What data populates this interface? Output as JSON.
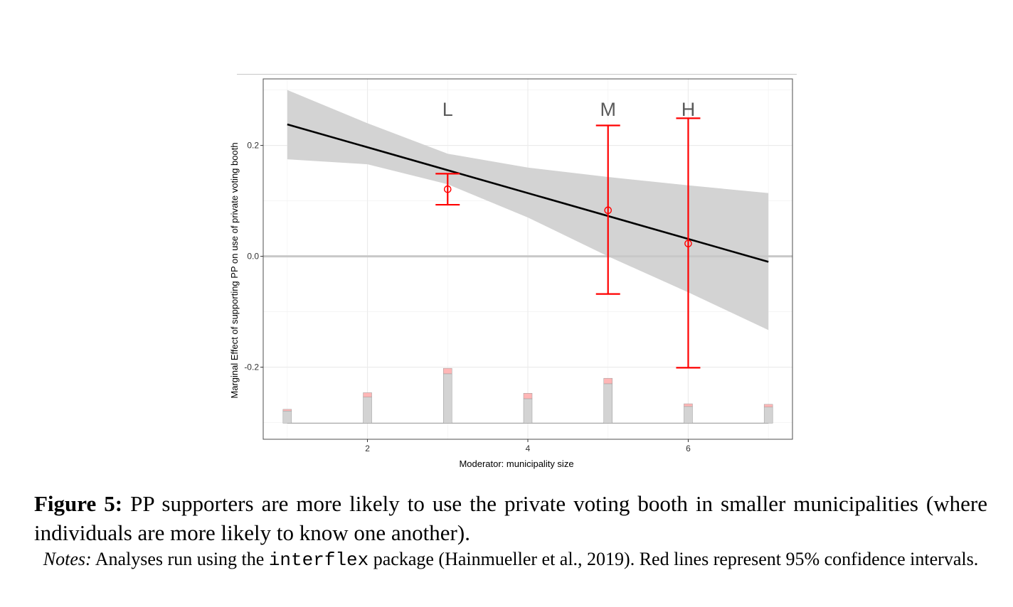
{
  "chart_data": {
    "type": "line",
    "xlabel": "Moderator: municipality size",
    "ylabel": "Marginal Effect of supporting PP on use of private voting booth",
    "xlim": [
      0.7,
      7.3
    ],
    "ylim": [
      -0.33,
      0.32
    ],
    "x_ticks": [
      2,
      4,
      6
    ],
    "x_tick_labels": [
      "2",
      "4",
      "6"
    ],
    "y_ticks": [
      -0.2,
      0.0,
      0.2
    ],
    "y_tick_labels": [
      "-0.2",
      "0.0",
      "0.2"
    ],
    "grid": true,
    "reference_line_y": 0,
    "series": [
      {
        "type": "line",
        "x": [
          1,
          7
        ],
        "y": [
          0.238,
          -0.01
        ]
      }
    ],
    "confidence_band": {
      "x": [
        1,
        2,
        3,
        4,
        5,
        6,
        7
      ],
      "lower": [
        0.175,
        0.166,
        0.13,
        0.07,
        0.0,
        -0.065,
        -0.133
      ],
      "upper": [
        0.3,
        0.24,
        0.185,
        0.16,
        0.143,
        0.128,
        0.114
      ]
    },
    "bin_estimates": [
      {
        "label": "L",
        "x": 3,
        "estimate": 0.121,
        "ci_lower": 0.093,
        "ci_upper": 0.149
      },
      {
        "label": "M",
        "x": 5,
        "estimate": 0.083,
        "ci_lower": -0.068,
        "ci_upper": 0.236
      },
      {
        "label": "H",
        "x": 6,
        "estimate": 0.023,
        "ci_lower": -0.201,
        "ci_upper": 0.249
      }
    ],
    "histogram": {
      "x": [
        1,
        2,
        3,
        4,
        5,
        6,
        7
      ],
      "gray_top": [
        -0.279,
        -0.254,
        -0.212,
        -0.257,
        -0.23,
        -0.271,
        -0.272
      ],
      "pink_top": [
        -0.276,
        -0.246,
        -0.202,
        -0.247,
        -0.22,
        -0.266,
        -0.267
      ],
      "baseline": -0.301
    },
    "colors": {
      "line": "#000000",
      "band": "#d3d3d3",
      "ci": "#ff0000",
      "hist_gray": "#d3d3d3",
      "hist_pink": "#ffb6b6",
      "zero_line": "#c8c8c8"
    }
  },
  "caption": {
    "label": "Figure 5:",
    "text": " PP supporters are more likely to use the private voting booth in smaller municipalities (where individuals are more likely to know one another)."
  },
  "notes": {
    "label": "Notes:",
    "text_before": " Analyses run using the ",
    "package": "interflex",
    "text_after": " package (Hainmueller et al., 2019). Red lines represent 95% confidence intervals."
  }
}
